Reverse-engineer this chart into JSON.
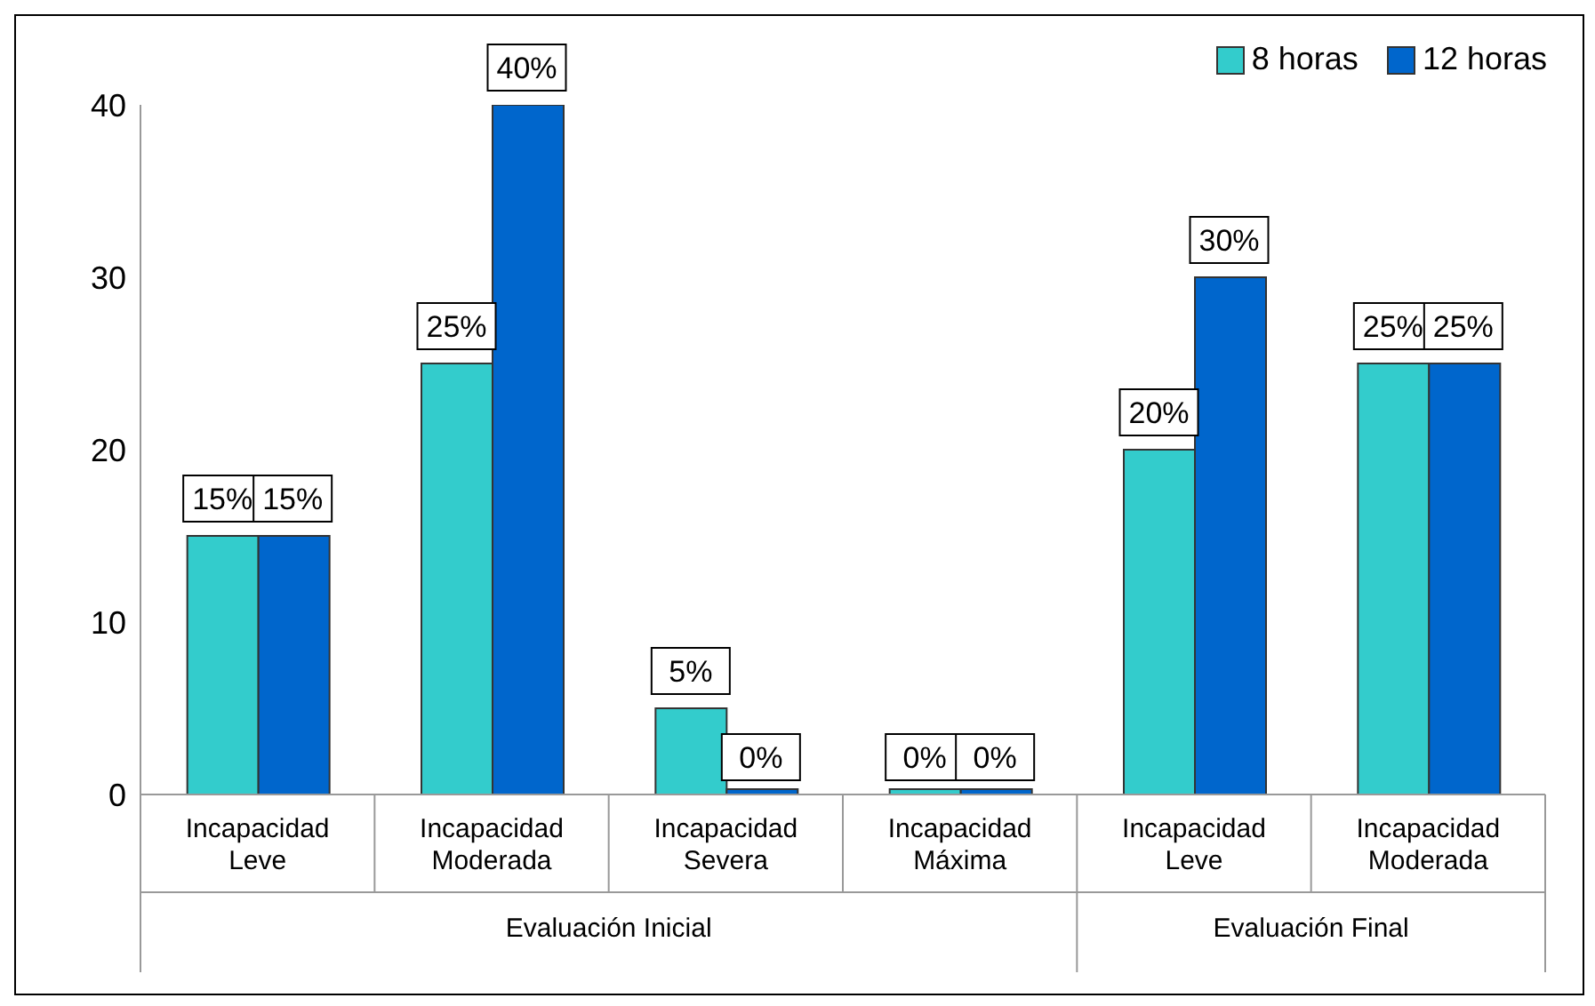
{
  "chart_data": {
    "type": "bar",
    "categories": [
      "Incapacidad Leve",
      "Incapacidad Moderada",
      "Incapacidad Severa",
      "Incapacidad Máxima",
      "Incapacidad Leve",
      "Incapacidad Moderada"
    ],
    "series": [
      {
        "name": "8 horas",
        "color": "#33cccc",
        "values": [
          15,
          25,
          5,
          0,
          20,
          25
        ],
        "value_labels": [
          "15%",
          "25%",
          "5%",
          "0%",
          "20%",
          "25%"
        ]
      },
      {
        "name": "12 horas",
        "color": "#0066cc",
        "values": [
          15,
          40,
          0,
          0,
          30,
          25
        ],
        "value_labels": [
          "15%",
          "40%",
          "0%",
          "0%",
          "30%",
          "25%"
        ]
      }
    ],
    "annotations": [
      "Evaluación Inicial",
      "Evaluación Final"
    ],
    "ylim": [
      0,
      40
    ],
    "yticks": [
      0,
      10,
      20,
      30,
      40
    ],
    "grid": false,
    "legend": "top right"
  }
}
